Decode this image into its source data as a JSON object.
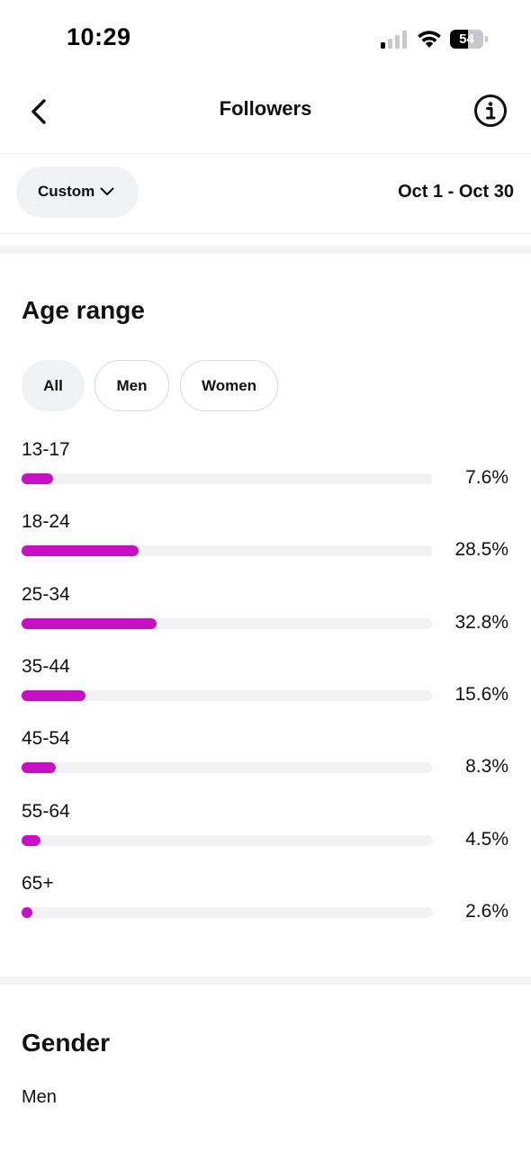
{
  "status_bar": {
    "time": "10:29",
    "battery": "54",
    "battery_level": 0.54,
    "signal_bars_on": 1,
    "signal_bars_total": 4
  },
  "nav": {
    "title": "Followers",
    "back_icon": "chevron-left-icon",
    "info_icon": "info-circle-icon"
  },
  "filter": {
    "period_label": "Custom",
    "date_range": "Oct 1 - Oct 30"
  },
  "age_section": {
    "title": "Age range",
    "chips": [
      {
        "label": "All",
        "selected": true
      },
      {
        "label": "Men",
        "selected": false
      },
      {
        "label": "Women",
        "selected": false
      }
    ]
  },
  "chart_data": {
    "type": "bar",
    "orientation": "horizontal",
    "categories": [
      "13-17",
      "18-24",
      "25-34",
      "35-44",
      "45-54",
      "55-64",
      "65+"
    ],
    "values": [
      7.6,
      28.5,
      32.8,
      15.6,
      8.3,
      4.5,
      2.6
    ],
    "value_labels": [
      "7.6%",
      "28.5%",
      "32.8%",
      "15.6%",
      "8.3%",
      "4.5%",
      "2.6%"
    ],
    "unit": "%",
    "xlim": [
      0,
      100
    ],
    "bar_color": "#c80fc6",
    "track_color": "#f2f2f4",
    "title": "",
    "xlabel": "",
    "ylabel": ""
  },
  "gender_section": {
    "title": "Gender",
    "first_label": "Men"
  }
}
